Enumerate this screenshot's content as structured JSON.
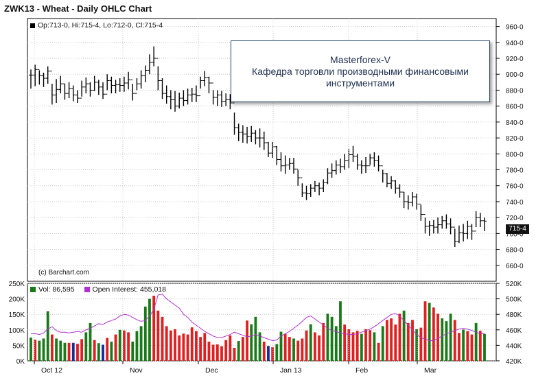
{
  "title": "ZWK13 - Wheat - Daily OHLC Chart",
  "ohlc_legend": "Op:713-0, Hi:715-4, Lo:712-0, Cl:715-4",
  "copyright": "(c) Barchart.com",
  "annotation": {
    "line1": "Masterforex-V",
    "line2": "Кафедра торговли производными финансовыми",
    "line3": "инструментами"
  },
  "last_price_tag": "715-4",
  "volume_legend": {
    "vol": "Vol: 86,595",
    "oi": "Open Interest: 455,018"
  },
  "colors": {
    "up_volume": "#1a7a1a",
    "down_volume": "#e02020",
    "neutral_volume": "#1a2a99",
    "open_interest": "#b030d0",
    "bars": "#000000"
  },
  "chart_data": [
    {
      "type": "ohlc",
      "title": "ZWK13 - Wheat - Daily OHLC Chart",
      "ylim": [
        640,
        970
      ],
      "y_ticks": [
        "660-0",
        "680-0",
        "700-0",
        "720-0",
        "740-0",
        "760-0",
        "780-0",
        "800-0",
        "820-0",
        "840-0",
        "860-0",
        "880-0",
        "900-0",
        "920-0",
        "940-0",
        "960-0"
      ],
      "x_ticks": [
        "Oct 12",
        "Nov",
        "Dec",
        "Jan 13",
        "Feb",
        "Mar"
      ],
      "last": {
        "open": "713-0",
        "high": "715-4",
        "low": "712-0",
        "close": "715-4"
      },
      "high": [
        906,
        912,
        905,
        902,
        910,
        888,
        894,
        898,
        888,
        890,
        886,
        880,
        892,
        896,
        890,
        898,
        893,
        890,
        900,
        897,
        893,
        895,
        897,
        903,
        888,
        895,
        905,
        911,
        925,
        935,
        910,
        895,
        886,
        880,
        879,
        877,
        880,
        882,
        883,
        886,
        897,
        904,
        897,
        880,
        880,
        879,
        876,
        875,
        852,
        838,
        836,
        834,
        835,
        830,
        832,
        828,
        815,
        815,
        810,
        802,
        798,
        795,
        795,
        780,
        763,
        760,
        762,
        766,
        764,
        768,
        782,
        788,
        792,
        794,
        800,
        806,
        810,
        800,
        792,
        796,
        800,
        802,
        798,
        780,
        776,
        772,
        767,
        762,
        752,
        748,
        752,
        750,
        736,
        720,
        716,
        717,
        720,
        722,
        724,
        719,
        706,
        710,
        712,
        716,
        712,
        728,
        726,
        720
      ],
      "low": [
        882,
        885,
        887,
        884,
        888,
        862,
        864,
        876,
        868,
        870,
        866,
        864,
        872,
        876,
        872,
        879,
        874,
        869,
        880,
        876,
        876,
        878,
        878,
        881,
        867,
        880,
        882,
        890,
        900,
        910,
        880,
        869,
        863,
        856,
        853,
        857,
        860,
        862,
        865,
        865,
        882,
        885,
        876,
        862,
        860,
        859,
        860,
        856,
        824,
        816,
        814,
        813,
        815,
        812,
        808,
        805,
        796,
        795,
        786,
        778,
        775,
        780,
        775,
        760,
        746,
        742,
        746,
        752,
        748,
        752,
        762,
        770,
        774,
        776,
        780,
        782,
        790,
        780,
        775,
        776,
        786,
        784,
        778,
        764,
        758,
        756,
        750,
        745,
        732,
        730,
        734,
        730,
        716,
        700,
        697,
        700,
        700,
        706,
        706,
        699,
        683,
        688,
        690,
        693,
        692,
        708,
        708,
        703
      ],
      "close": [
        899,
        906,
        898,
        895,
        904,
        874,
        881,
        888,
        876,
        882,
        874,
        870,
        884,
        888,
        880,
        890,
        884,
        875,
        892,
        886,
        887,
        886,
        889,
        893,
        876,
        888,
        898,
        905,
        915,
        920,
        892,
        876,
        872,
        868,
        860,
        870,
        867,
        874,
        875,
        873,
        892,
        896,
        889,
        871,
        874,
        866,
        868,
        864,
        833,
        827,
        825,
        822,
        826,
        820,
        820,
        814,
        801,
        809,
        793,
        785,
        786,
        788,
        781,
        770,
        751,
        750,
        757,
        760,
        757,
        764,
        776,
        779,
        786,
        784,
        792,
        799,
        797,
        786,
        785,
        785,
        795,
        792,
        785,
        775,
        763,
        766,
        757,
        752,
        740,
        739,
        746,
        737,
        724,
        709,
        710,
        708,
        711,
        716,
        712,
        708,
        690,
        701,
        700,
        709,
        703,
        720,
        716,
        715.5
      ]
    },
    {
      "type": "bar",
      "title": "Vol: 86,595",
      "ylim": [
        0,
        250000
      ],
      "y_ticks": [
        "0K",
        "50K",
        "100K",
        "150K",
        "200K",
        "250K"
      ],
      "values": [
        75,
        68,
        65,
        72,
        160,
        85,
        72,
        65,
        58,
        58,
        58,
        55,
        70,
        92,
        122,
        67,
        57,
        52,
        74,
        62,
        85,
        100,
        98,
        92,
        62,
        96,
        112,
        175,
        200,
        210,
        162,
        142,
        112,
        98,
        102,
        82,
        88,
        85,
        108,
        96,
        77,
        90,
        62,
        52,
        53,
        47,
        67,
        82,
        42,
        64,
        77,
        130,
        118,
        142,
        92,
        62,
        48,
        44,
        54,
        94,
        87,
        77,
        72,
        65,
        72,
        98,
        118,
        92,
        82,
        122,
        152,
        142,
        112,
        192,
        117,
        102,
        92,
        97,
        87,
        102,
        99,
        92,
        58,
        112,
        132,
        137,
        117,
        152,
        162,
        122,
        132,
        102,
        107,
        192,
        187,
        172,
        152,
        137,
        128,
        152,
        132,
        90,
        101,
        96,
        85,
        122,
        97,
        87
      ],
      "colors": [
        "g",
        "r",
        "g",
        "g",
        "g",
        "r",
        "g",
        "g",
        "g",
        "r",
        "b",
        "r",
        "r",
        "g",
        "g",
        "r",
        "g",
        "b",
        "r",
        "g",
        "r",
        "g",
        "r",
        "r",
        "g",
        "g",
        "g",
        "g",
        "g",
        "r",
        "r",
        "r",
        "r",
        "r",
        "r",
        "r",
        "r",
        "r",
        "r",
        "r",
        "r",
        "r",
        "r",
        "r",
        "r",
        "r",
        "r",
        "r",
        "r",
        "g",
        "r",
        "r",
        "g",
        "g",
        "g",
        "r",
        "b",
        "r",
        "g",
        "g",
        "r",
        "r",
        "g",
        "r",
        "r",
        "r",
        "g",
        "r",
        "r",
        "r",
        "g",
        "g",
        "g",
        "g",
        "r",
        "r",
        "r",
        "r",
        "g",
        "r",
        "r",
        "g",
        "r",
        "g",
        "r",
        "r",
        "r",
        "r",
        "g",
        "r",
        "r",
        "g",
        "r",
        "r",
        "g",
        "r",
        "r",
        "g",
        "g",
        "g",
        "r",
        "r",
        "g",
        "r",
        "r",
        "g",
        "r",
        "g"
      ]
    },
    {
      "type": "line",
      "title": "Open Interest: 455,018",
      "ylim": [
        420000,
        520000
      ],
      "y_ticks": [
        "420K",
        "440K",
        "460K",
        "480K",
        "500K",
        "520K"
      ],
      "values": [
        455,
        455,
        454,
        456,
        461,
        464,
        459,
        457,
        457,
        456,
        457,
        458,
        457,
        460,
        462,
        465,
        468,
        467,
        470,
        472,
        474,
        478,
        480,
        479,
        476,
        473,
        471,
        472,
        478,
        486,
        505,
        506,
        500,
        496,
        492,
        488,
        480,
        476,
        470,
        466,
        462,
        458,
        455,
        452,
        450,
        450,
        452,
        454,
        457,
        455,
        453,
        451,
        452,
        454,
        452,
        450,
        448,
        446,
        447,
        452,
        455,
        458,
        462,
        466,
        471,
        476,
        478,
        474,
        470,
        466,
        462,
        459,
        458,
        456,
        455,
        454,
        454,
        455,
        457,
        459,
        461,
        464,
        468,
        472,
        476,
        480,
        481,
        478,
        472,
        466,
        460,
        454,
        450,
        448,
        446,
        446,
        449,
        452,
        455,
        457,
        459,
        461,
        462,
        461,
        459,
        457,
        455,
        455
      ]
    }
  ]
}
